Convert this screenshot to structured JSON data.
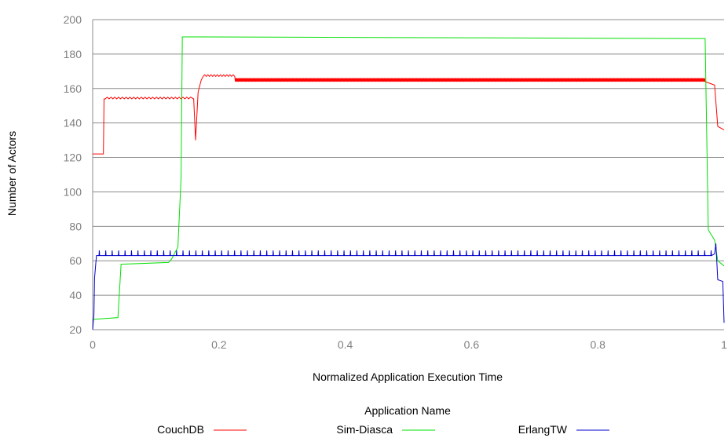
{
  "chart_data": {
    "type": "line",
    "xlabel": "Normalized Application Execution Time",
    "ylabel": "Number of Actors",
    "xlim": [
      0,
      1
    ],
    "ylim": [
      20,
      200
    ],
    "x_ticks": [
      "0",
      "0.2",
      "0.4",
      "0.6",
      "0.8",
      "1"
    ],
    "y_ticks": [
      "20",
      "40",
      "60",
      "80",
      "100",
      "120",
      "140",
      "160",
      "180",
      "200"
    ],
    "grid": "horizontal",
    "legend": {
      "title": "Application Name",
      "position": "bottom"
    },
    "series": [
      {
        "name": "CouchDB",
        "color": "#ff0000",
        "points": [
          [
            0.0,
            122
          ],
          [
            0.017,
            122
          ],
          [
            0.018,
            154
          ],
          [
            0.16,
            154
          ],
          [
            0.163,
            130
          ],
          [
            0.167,
            158
          ],
          [
            0.172,
            165
          ],
          [
            0.2,
            167
          ],
          [
            0.225,
            167
          ],
          [
            0.226,
            164
          ],
          [
            0.97,
            164
          ],
          [
            0.985,
            162
          ],
          [
            0.99,
            138
          ],
          [
            1.0,
            136
          ]
        ]
      },
      {
        "name": "Sim-Diasca",
        "color": "#00e000",
        "points": [
          [
            0.0,
            26
          ],
          [
            0.04,
            27
          ],
          [
            0.045,
            58
          ],
          [
            0.12,
            59
          ],
          [
            0.125,
            61
          ],
          [
            0.135,
            68
          ],
          [
            0.14,
            108
          ],
          [
            0.142,
            190
          ],
          [
            0.97,
            189
          ],
          [
            0.975,
            78
          ],
          [
            0.985,
            72
          ],
          [
            0.99,
            60
          ],
          [
            1.0,
            57
          ]
        ]
      },
      {
        "name": "ErlangTW",
        "color": "#0000cc",
        "points": [
          [
            0.0,
            20
          ],
          [
            0.002,
            29
          ],
          [
            0.003,
            50
          ],
          [
            0.006,
            63
          ],
          [
            0.985,
            65
          ],
          [
            0.99,
            49
          ],
          [
            0.998,
            48
          ],
          [
            1.0,
            24
          ]
        ]
      }
    ],
    "spike_notes": {
      "CouchDB": "dense oscillation between 164 and 166 after x=0.23",
      "ErlangTW": "periodic spikes to ~66 above a 63 baseline"
    }
  }
}
